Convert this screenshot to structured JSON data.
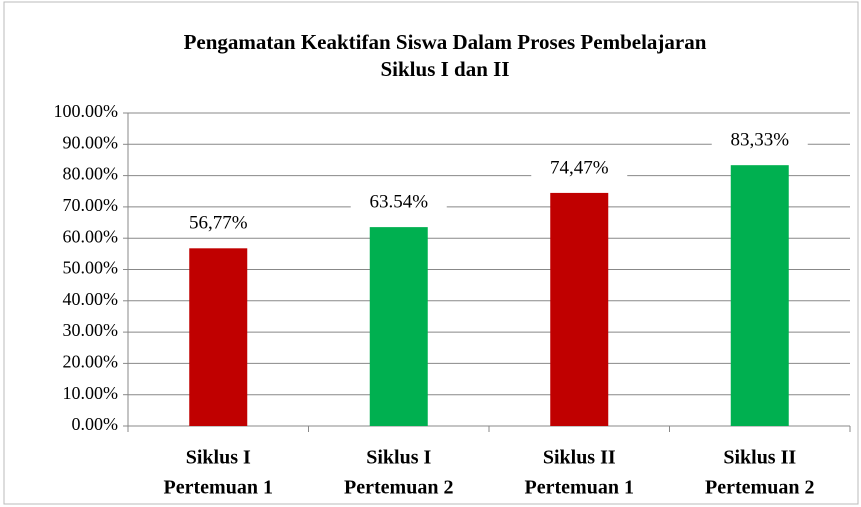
{
  "chart_data": {
    "type": "bar",
    "title": [
      "Pengamatan Keaktifan Siswa Dalam Proses Pembelajaran",
      "Siklus I dan II"
    ],
    "categories": [
      [
        "Siklus I",
        "Pertemuan 1"
      ],
      [
        "Siklus I",
        "Pertemuan 2"
      ],
      [
        "Siklus II",
        "Pertemuan 1"
      ],
      [
        "Siklus II",
        "Pertemuan 2"
      ]
    ],
    "values": [
      56.77,
      63.54,
      74.47,
      83.33
    ],
    "value_labels": [
      "56,77%",
      "63.54%",
      "74,47%",
      "83,33%"
    ],
    "colors": [
      "#c00000",
      "#00b050",
      "#c00000",
      "#00b050"
    ],
    "ylim": [
      0,
      100
    ],
    "yticks": [
      {
        "value": 0,
        "label": "0.00%"
      },
      {
        "value": 10,
        "label": "10.00%"
      },
      {
        "value": 20,
        "label": "20.00%"
      },
      {
        "value": 30,
        "label": "30.00%"
      },
      {
        "value": 40,
        "label": "40.00%"
      },
      {
        "value": 50,
        "label": "50.00%"
      },
      {
        "value": 60,
        "label": "60.00%"
      },
      {
        "value": 70,
        "label": "70.00%"
      },
      {
        "value": 80,
        "label": "80.00%"
      },
      {
        "value": 90,
        "label": "90.00%"
      },
      {
        "value": 100,
        "label": "100.00%"
      }
    ],
    "grid": true
  }
}
